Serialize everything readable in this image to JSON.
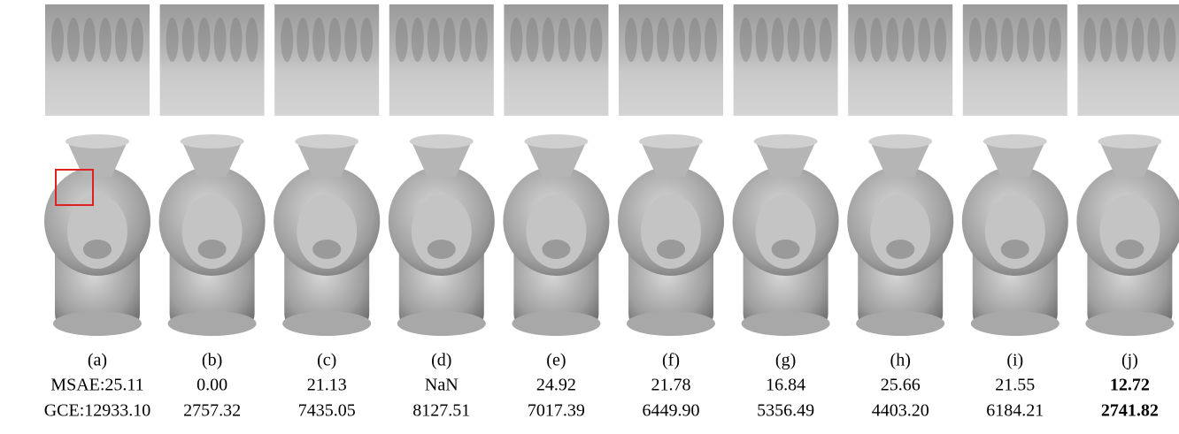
{
  "panels": [
    {
      "label": "(a)",
      "msae": "MSAE:25.11",
      "gce": "GCE:12933.10"
    },
    {
      "label": "(b)",
      "msae": "0.00",
      "gce": "2757.32"
    },
    {
      "label": "(c)",
      "msae": "21.13",
      "gce": "7435.05"
    },
    {
      "label": "(d)",
      "msae": "NaN",
      "gce": "8127.51"
    },
    {
      "label": "(e)",
      "msae": "24.92",
      "gce": "7017.39"
    },
    {
      "label": "(f)",
      "msae": "21.78",
      "gce": "6449.90"
    },
    {
      "label": "(g)",
      "msae": "16.84",
      "gce": "5356.49"
    },
    {
      "label": "(h)",
      "msae": "25.66",
      "gce": "4403.20"
    },
    {
      "label": "(i)",
      "msae": "21.55",
      "gce": "6184.21"
    },
    {
      "label": "(j)",
      "msae": "12.72",
      "gce": "2741.82"
    }
  ]
}
